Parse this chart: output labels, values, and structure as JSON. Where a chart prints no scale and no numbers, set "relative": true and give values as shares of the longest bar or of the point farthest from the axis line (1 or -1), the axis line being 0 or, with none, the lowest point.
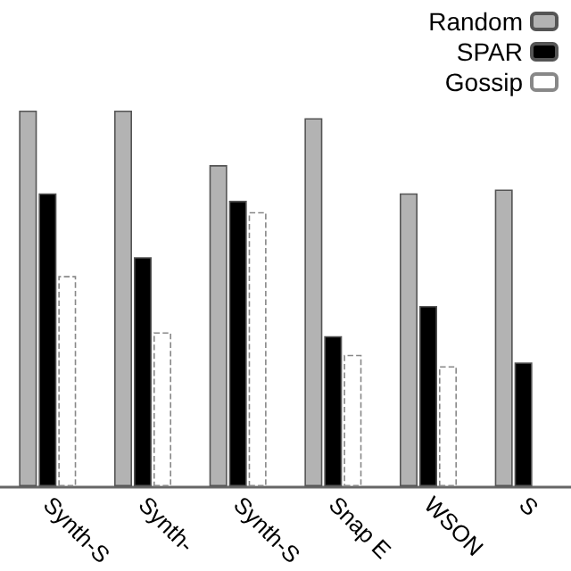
{
  "chart_data": {
    "type": "bar",
    "relative": true,
    "legend": "top right",
    "categories": [
      "Synth-S",
      "Synth-",
      "Synth-S",
      "Snap E",
      "WSON",
      "S"
    ],
    "series": [
      {
        "name": "Random",
        "color": "#b3b3b3",
        "values": [
          1,
          1,
          0.855,
          0.98,
          0.78,
          0.79
        ]
      },
      {
        "name": "SPAR",
        "color": "#000000",
        "values": [
          0.78,
          0.61,
          0.76,
          0.4,
          0.48,
          0.33
        ]
      },
      {
        "name": "Gossip",
        "color": "#ffffff",
        "values": [
          0.56,
          0.41,
          0.73,
          0.35,
          0.32,
          null
        ]
      }
    ]
  }
}
